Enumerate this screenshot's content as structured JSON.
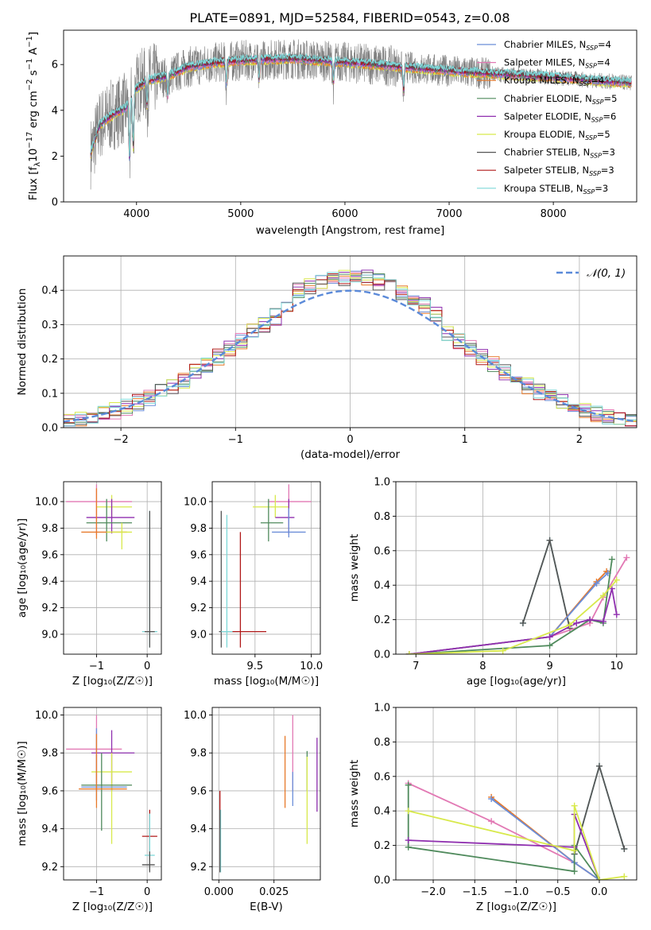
{
  "figure": {
    "title": "PLATE=0891, MJD=52584, FIBERID=0543, z=0.08"
  },
  "styles": {
    "palette": {
      "chabrier_miles": "#6b8ed8",
      "salpeter_miles": "#e279b4",
      "kroupa_miles": "#e7792a",
      "chabrier_elodie": "#4f8a5c",
      "salpeter_elodie": "#8f2faf",
      "kroupa_elodie": "#d8e94c",
      "chabrier_stelib": "#555555",
      "salpeter_stelib": "#b01818",
      "kroupa_stelib": "#7ed8d8",
      "data": "#7f7f7f",
      "gaussian": "#5b8ad9"
    }
  },
  "chart_data": [
    {
      "id": "spectrum",
      "type": "line",
      "title": "PLATE=0891, MJD=52584, FIBERID=0543, z=0.08",
      "xlabel": "wavelength [Angstrom, rest frame]",
      "ylabel_parts": {
        "pre": "Flux [f",
        "sub": "λ",
        "mid": "10",
        "sup1": "−17",
        "mid2": " erg cm",
        "sup2": "−2",
        "mid3": " s",
        "sup3": "−1",
        "mid4": " A",
        "sup4": "−1",
        "post": "]"
      },
      "xlim": [
        3300,
        8800
      ],
      "ylim": [
        0,
        7.5
      ],
      "xticks": [
        "4000",
        "5000",
        "6000",
        "7000",
        "8000"
      ],
      "yticks": [
        "0",
        "2",
        "4",
        "6"
      ],
      "grid": false,
      "legend_position": "right",
      "legend": [
        {
          "label": "Chabrier MILES, N",
          "sub": "SSP",
          "tail": "=4",
          "color_key": "chabrier_miles"
        },
        {
          "label": "Salpeter MILES, N",
          "sub": "SSP",
          "tail": "=4",
          "color_key": "salpeter_miles"
        },
        {
          "label": "Kroupa MILES, N",
          "sub": "SSP",
          "tail": "=4",
          "color_key": "kroupa_miles"
        },
        {
          "label": "Chabrier ELODIE, N",
          "sub": "SSP",
          "tail": "=5",
          "color_key": "chabrier_elodie"
        },
        {
          "label": "Salpeter ELODIE, N",
          "sub": "SSP",
          "tail": "=6",
          "color_key": "salpeter_elodie"
        },
        {
          "label": "Kroupa ELODIE, N",
          "sub": "SSP",
          "tail": "=5",
          "color_key": "kroupa_elodie"
        },
        {
          "label": "Chabrier STELIB, N",
          "sub": "SSP",
          "tail": "=3",
          "color_key": "chabrier_stelib"
        },
        {
          "label": "Salpeter STELIB, N",
          "sub": "SSP",
          "tail": "=3",
          "color_key": "salpeter_stelib"
        },
        {
          "label": "Kroupa STELIB, N",
          "sub": "SSP",
          "tail": "=3",
          "color_key": "kroupa_stelib"
        }
      ],
      "continuum_anchor_points": [
        [
          3550,
          2.0
        ],
        [
          3650,
          3.4
        ],
        [
          3800,
          3.9
        ],
        [
          3900,
          4.1
        ],
        [
          3980,
          4.9
        ],
        [
          4100,
          5.3
        ],
        [
          4300,
          5.5
        ],
        [
          4500,
          5.9
        ],
        [
          4800,
          6.1
        ],
        [
          5100,
          6.2
        ],
        [
          5500,
          6.25
        ],
        [
          6000,
          6.1
        ],
        [
          6400,
          5.95
        ],
        [
          6800,
          5.8
        ],
        [
          7200,
          5.65
        ],
        [
          7600,
          5.55
        ],
        [
          8000,
          5.45
        ],
        [
          8400,
          5.3
        ],
        [
          8750,
          5.2
        ]
      ]
    },
    {
      "id": "residuals",
      "type": "histogram",
      "xlabel": "(data-model)/error",
      "ylabel": "Normed distribution",
      "xlim": [
        -2.5,
        2.5
      ],
      "ylim": [
        0,
        0.5
      ],
      "xticks": [
        "−2",
        "−1",
        "0",
        "1",
        "2"
      ],
      "yticks": [
        "0.0",
        "0.1",
        "0.2",
        "0.3",
        "0.4"
      ],
      "grid": true,
      "legend_position": "top-right",
      "legend_label": "𝒩(0, 1)",
      "bin_width": 0.1
    },
    {
      "id": "age_vs_Z",
      "type": "errorbar",
      "xlabel": "Z [log₁₀(Z/Z☉)]",
      "ylabel": "age  [log₁₀(age/yr)]",
      "xlim": [
        -1.65,
        0.28
      ],
      "ylim": [
        8.85,
        10.15
      ],
      "xticks": [
        "−1",
        "0"
      ],
      "yticks": [
        "9.0",
        "9.2",
        "9.4",
        "9.6",
        "9.8",
        "10.0"
      ],
      "grid": true,
      "points": [
        {
          "c": "salpeter_miles",
          "x": -1.0,
          "y": 10.0,
          "xe": [
            -1.6,
            -0.3
          ],
          "ye": [
            9.75,
            10.13
          ]
        },
        {
          "c": "kroupa_elodie",
          "x": -0.7,
          "y": 9.96,
          "xe": [
            -1.0,
            -0.3
          ],
          "ye": [
            9.88,
            10.05
          ]
        },
        {
          "c": "salpeter_elodie",
          "x": -0.7,
          "y": 9.88,
          "xe": [
            -1.2,
            -0.25
          ],
          "ye": [
            9.76,
            10.02
          ]
        },
        {
          "c": "chabrier_elodie",
          "x": -0.8,
          "y": 9.84,
          "xe": [
            -1.2,
            -0.3
          ],
          "ye": [
            9.7,
            10.02
          ]
        },
        {
          "c": "kroupa_miles",
          "x": -1.0,
          "y": 9.77,
          "xe": [
            -1.3,
            -0.4
          ],
          "ye": [
            9.72,
            10.1
          ]
        },
        {
          "c": "kroupa_elodie",
          "x": -0.5,
          "y": 9.77,
          "xe": [
            -0.8,
            -0.3
          ],
          "ye": [
            9.64,
            9.84
          ]
        },
        {
          "c": "kroupa_stelib",
          "x": 0.05,
          "y": 9.02,
          "xe": [
            -0.1,
            0.2
          ],
          "ye": [
            8.9,
            9.93
          ]
        },
        {
          "c": "chabrier_stelib",
          "x": 0.05,
          "y": 9.02,
          "xe": [
            -0.05,
            0.15
          ],
          "ye": [
            8.9,
            9.93
          ]
        }
      ]
    },
    {
      "id": "age_vs_mass",
      "type": "errorbar",
      "xlabel": "mass [log₁₀(M/M☉)]",
      "ylabel": "",
      "xlim": [
        9.12,
        10.08
      ],
      "ylim": [
        8.85,
        10.15
      ],
      "xticks": [
        "9.5",
        "10.0"
      ],
      "yticks": [
        "9.0",
        "9.2",
        "9.4",
        "9.6",
        "9.8",
        "10.0"
      ],
      "grid": true,
      "points": [
        {
          "c": "salpeter_miles",
          "x": 9.8,
          "y": 10.0,
          "xe": [
            9.62,
            10.0
          ],
          "ye": [
            9.75,
            10.13
          ]
        },
        {
          "c": "kroupa_elodie",
          "x": 9.68,
          "y": 9.96,
          "xe": [
            9.48,
            9.8
          ],
          "ye": [
            9.88,
            10.05
          ]
        },
        {
          "c": "salpeter_elodie",
          "x": 9.8,
          "y": 9.88,
          "xe": [
            9.68,
            9.85
          ],
          "ye": [
            9.76,
            10.02
          ]
        },
        {
          "c": "chabrier_elodie",
          "x": 9.62,
          "y": 9.84,
          "xe": [
            9.55,
            9.75
          ],
          "ye": [
            9.7,
            10.02
          ]
        },
        {
          "c": "chabrier_miles",
          "x": 9.8,
          "y": 9.77,
          "xe": [
            9.65,
            9.95
          ],
          "ye": [
            9.73,
            9.95
          ]
        },
        {
          "c": "chabrier_stelib",
          "x": 9.2,
          "y": 9.02,
          "xe": [
            9.18,
            9.3
          ],
          "ye": [
            8.9,
            9.93
          ]
        },
        {
          "c": "kroupa_stelib",
          "x": 9.25,
          "y": 9.02,
          "xe": [
            9.2,
            9.35
          ],
          "ye": [
            8.9,
            9.9
          ]
        },
        {
          "c": "salpeter_stelib",
          "x": 9.37,
          "y": 9.02,
          "xe": [
            9.3,
            9.6
          ],
          "ye": [
            8.9,
            9.77
          ]
        }
      ]
    },
    {
      "id": "weight_vs_age",
      "type": "line",
      "xlabel": "age  [log₁₀(age/yr)]",
      "ylabel": "mass weight",
      "xlim": [
        6.7,
        10.3
      ],
      "ylim": [
        0.0,
        1.0
      ],
      "xticks": [
        "7",
        "8",
        "9",
        "10"
      ],
      "yticks": [
        "0.0",
        "0.2",
        "0.4",
        "0.6",
        "0.8",
        "1.0"
      ],
      "grid": true,
      "series": [
        {
          "c": "kroupa_stelib",
          "x": [
            8.6,
            9.0,
            9.3
          ],
          "y": [
            0.18,
            0.66,
            0.15
          ]
        },
        {
          "c": "chabrier_stelib",
          "x": [
            8.6,
            9.0,
            9.3
          ],
          "y": [
            0.18,
            0.66,
            0.15
          ]
        },
        {
          "c": "salpeter_miles",
          "x": [
            6.9,
            9.0,
            9.6,
            9.8,
            10.15
          ],
          "y": [
            0.0,
            0.1,
            0.18,
            0.33,
            0.56
          ]
        },
        {
          "c": "kroupa_miles",
          "x": [
            6.9,
            9.0,
            9.7,
            9.85
          ],
          "y": [
            0.0,
            0.1,
            0.42,
            0.48
          ]
        },
        {
          "c": "chabrier_miles",
          "x": [
            6.9,
            9.0,
            9.7,
            9.87
          ],
          "y": [
            0.0,
            0.1,
            0.41,
            0.47
          ]
        },
        {
          "c": "chabrier_elodie",
          "x": [
            6.9,
            9.0,
            9.6,
            9.8,
            9.93
          ],
          "y": [
            0.0,
            0.05,
            0.2,
            0.18,
            0.55
          ]
        },
        {
          "c": "salpeter_elodie",
          "x": [
            6.9,
            9.0,
            9.4,
            9.6,
            9.8,
            9.93,
            10.0
          ],
          "y": [
            0.0,
            0.1,
            0.18,
            0.2,
            0.19,
            0.38,
            0.23
          ]
        },
        {
          "c": "kroupa_elodie",
          "x": [
            6.9,
            8.3,
            9.3,
            9.8,
            10.0
          ],
          "y": [
            0.0,
            0.02,
            0.17,
            0.34,
            0.43
          ]
        }
      ]
    },
    {
      "id": "mass_vs_Z",
      "type": "errorbar",
      "xlabel": "Z [log₁₀(Z/Z☉)]",
      "ylabel": "mass [log₁₀(M/M☉)]",
      "xlim": [
        -1.65,
        0.28
      ],
      "ylim": [
        9.13,
        10.04
      ],
      "xticks": [
        "−1",
        "0"
      ],
      "yticks": [
        "9.2",
        "9.4",
        "9.6",
        "9.8",
        "10.0"
      ],
      "grid": true,
      "points": [
        {
          "c": "salpeter_miles",
          "x": -1.0,
          "y": 9.82,
          "xe": [
            -1.6,
            -0.5
          ],
          "ye": [
            9.6,
            10.0
          ]
        },
        {
          "c": "salpeter_elodie",
          "x": -0.7,
          "y": 9.8,
          "xe": [
            -1.1,
            -0.25
          ],
          "ye": [
            9.6,
            9.92
          ]
        },
        {
          "c": "kroupa_elodie",
          "x": -0.7,
          "y": 9.7,
          "xe": [
            -1.1,
            -0.3
          ],
          "ye": [
            9.32,
            9.8
          ]
        },
        {
          "c": "chabrier_elodie",
          "x": -0.9,
          "y": 9.63,
          "xe": [
            -1.3,
            -0.3
          ],
          "ye": [
            9.39,
            9.8
          ]
        },
        {
          "c": "chabrier_miles",
          "x": -1.0,
          "y": 9.62,
          "xe": [
            -1.3,
            -0.4
          ],
          "ye": [
            9.55,
            9.93
          ]
        },
        {
          "c": "kroupa_miles",
          "x": -1.0,
          "y": 9.61,
          "xe": [
            -1.35,
            -0.4
          ],
          "ye": [
            9.51,
            9.9
          ]
        },
        {
          "c": "salpeter_stelib",
          "x": 0.05,
          "y": 9.36,
          "xe": [
            -0.1,
            0.2
          ],
          "ye": [
            9.18,
            9.5
          ]
        },
        {
          "c": "kroupa_stelib",
          "x": 0.05,
          "y": 9.26,
          "xe": [
            -0.05,
            0.15
          ],
          "ye": [
            9.18,
            9.48
          ]
        },
        {
          "c": "chabrier_stelib",
          "x": 0.05,
          "y": 9.21,
          "xe": [
            -0.1,
            0.15
          ],
          "ye": [
            9.17,
            9.28
          ]
        }
      ]
    },
    {
      "id": "mass_vs_EBV",
      "type": "errorbar",
      "xlabel": "E(B-V)",
      "ylabel": "",
      "xlim": [
        -0.003,
        0.046
      ],
      "ylim": [
        9.13,
        10.04
      ],
      "xticks": [
        "0.000",
        "0.025"
      ],
      "yticks": [
        "9.2",
        "9.4",
        "9.6",
        "9.8",
        "10.0"
      ],
      "grid": true,
      "points": [
        {
          "c": "salpeter_stelib",
          "x": 0.0005,
          "y": 9.55,
          "ye": [
            9.4,
            9.6
          ]
        },
        {
          "c": "kroupa_stelib",
          "x": 0.0008,
          "y": 9.4,
          "ye": [
            9.17,
            9.5
          ]
        },
        {
          "c": "chabrier_stelib",
          "x": 0.0005,
          "y": 9.35,
          "ye": [
            9.17,
            9.5
          ]
        },
        {
          "c": "kroupa_miles",
          "x": 0.03,
          "y": 9.7,
          "ye": [
            9.51,
            9.89
          ]
        },
        {
          "c": "salpeter_miles",
          "x": 0.0335,
          "y": 9.8,
          "ye": [
            9.6,
            10.0
          ]
        },
        {
          "c": "chabrier_miles",
          "x": 0.0335,
          "y": 9.6,
          "ye": [
            9.52,
            9.7
          ]
        },
        {
          "c": "chabrier_elodie",
          "x": 0.04,
          "y": 9.72,
          "ye": [
            9.6,
            9.81
          ]
        },
        {
          "c": "kroupa_elodie",
          "x": 0.04,
          "y": 9.6,
          "ye": [
            9.32,
            9.78
          ]
        },
        {
          "c": "salpeter_elodie",
          "x": 0.0445,
          "y": 9.7,
          "ye": [
            9.49,
            9.88
          ]
        }
      ]
    },
    {
      "id": "weight_vs_Z",
      "type": "line",
      "xlabel": "Z [log₁₀(Z/Z☉)]",
      "ylabel": "mass weight",
      "xlim": [
        -2.45,
        0.45
      ],
      "ylim": [
        0.0,
        1.0
      ],
      "xticks": [
        "−2.0",
        "−1.5",
        "−1.0",
        "−0.5",
        "0.0"
      ],
      "yticks": [
        "0.0",
        "0.2",
        "0.4",
        "0.6",
        "0.8",
        "1.0"
      ],
      "grid": true,
      "series": [
        {
          "c": "kroupa_stelib",
          "x": [
            -0.3,
            0.0,
            0.3
          ],
          "y": [
            0.15,
            0.66,
            0.18
          ]
        },
        {
          "c": "chabrier_stelib",
          "x": [
            -0.3,
            0.0,
            0.3
          ],
          "y": [
            0.15,
            0.66,
            0.18
          ]
        },
        {
          "c": "salpeter_miles",
          "x": [
            -2.3,
            -1.3,
            -0.3,
            0.0
          ],
          "y": [
            0.56,
            0.34,
            0.1,
            0.0
          ]
        },
        {
          "c": "kroupa_miles",
          "x": [
            -1.3,
            -0.3,
            0.0
          ],
          "y": [
            0.48,
            0.1,
            0.0
          ]
        },
        {
          "c": "chabrier_miles",
          "x": [
            -1.3,
            -0.3,
            0.0
          ],
          "y": [
            0.47,
            0.1,
            0.0
          ]
        },
        {
          "c": "chabrier_elodie",
          "x": [
            -2.3,
            -2.3,
            -0.3,
            -0.3,
            0.0
          ],
          "y": [
            0.55,
            0.19,
            0.05,
            0.2,
            0.0
          ]
        },
        {
          "c": "salpeter_elodie",
          "x": [
            -2.3,
            -0.3,
            -0.3,
            0.0
          ],
          "y": [
            0.23,
            0.19,
            0.38,
            0.0
          ]
        },
        {
          "c": "kroupa_elodie",
          "x": [
            -2.3,
            -0.3,
            -0.3,
            0.0,
            0.3
          ],
          "y": [
            0.4,
            0.17,
            0.43,
            0.0,
            0.02
          ]
        }
      ]
    }
  ]
}
